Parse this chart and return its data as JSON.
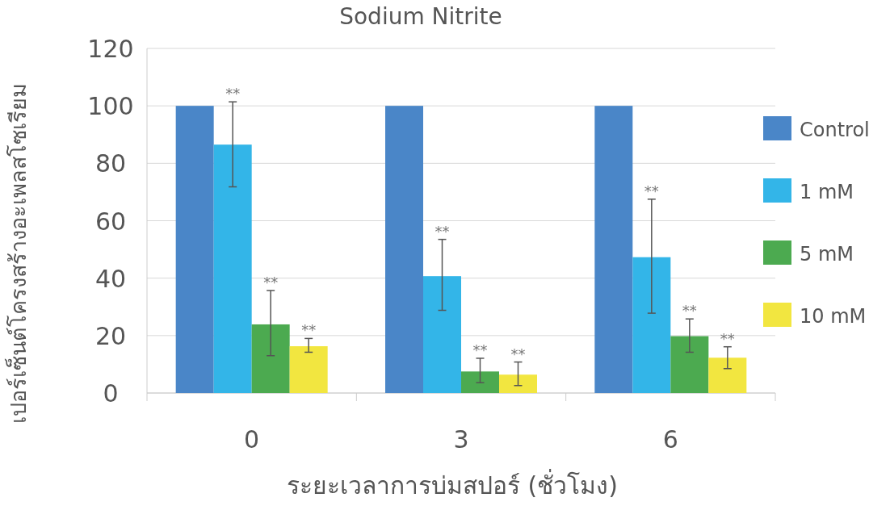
{
  "chart_data": {
    "type": "bar",
    "title": "Sodium Nitrite",
    "xlabel": "ระยะเวลาการบ่มสปอร์ (ชั่วโมง)",
    "ylabel": "เปอร์เซ็นต์โครงสร้างอะเพลสโซเรียม",
    "categories": [
      "0",
      "3",
      "6"
    ],
    "series": [
      {
        "name": "Control",
        "color": "#4a86c8",
        "values": [
          100,
          100,
          100
        ]
      },
      {
        "name": "1 mM",
        "color": "#33b5e8",
        "values": [
          86.5,
          40.7,
          47.3
        ],
        "errors": [
          [
            71.8,
            101.4
          ],
          [
            28.8,
            53.5
          ],
          [
            27.8,
            67.5
          ]
        ]
      },
      {
        "name": "5 mM",
        "color": "#4caa50",
        "values": [
          23.9,
          7.5,
          19.8
        ],
        "errors": [
          [
            13.0,
            35.7
          ],
          [
            3.6,
            12.1
          ],
          [
            14.2,
            25.8
          ]
        ]
      },
      {
        "name": "10 mM",
        "color": "#f2e640",
        "values": [
          16.3,
          6.4,
          12.3
        ],
        "errors": [
          [
            14.2,
            19.0
          ],
          [
            2.6,
            10.8
          ],
          [
            8.5,
            16.1
          ]
        ]
      }
    ],
    "annotations": [
      "**",
      "**",
      "**",
      "**",
      "**",
      "**",
      "**",
      "**",
      "**"
    ],
    "ylim": [
      0,
      120
    ],
    "yticks": [
      0,
      20,
      40,
      60,
      80,
      100,
      120
    ],
    "grid": "y",
    "legend": "right"
  }
}
